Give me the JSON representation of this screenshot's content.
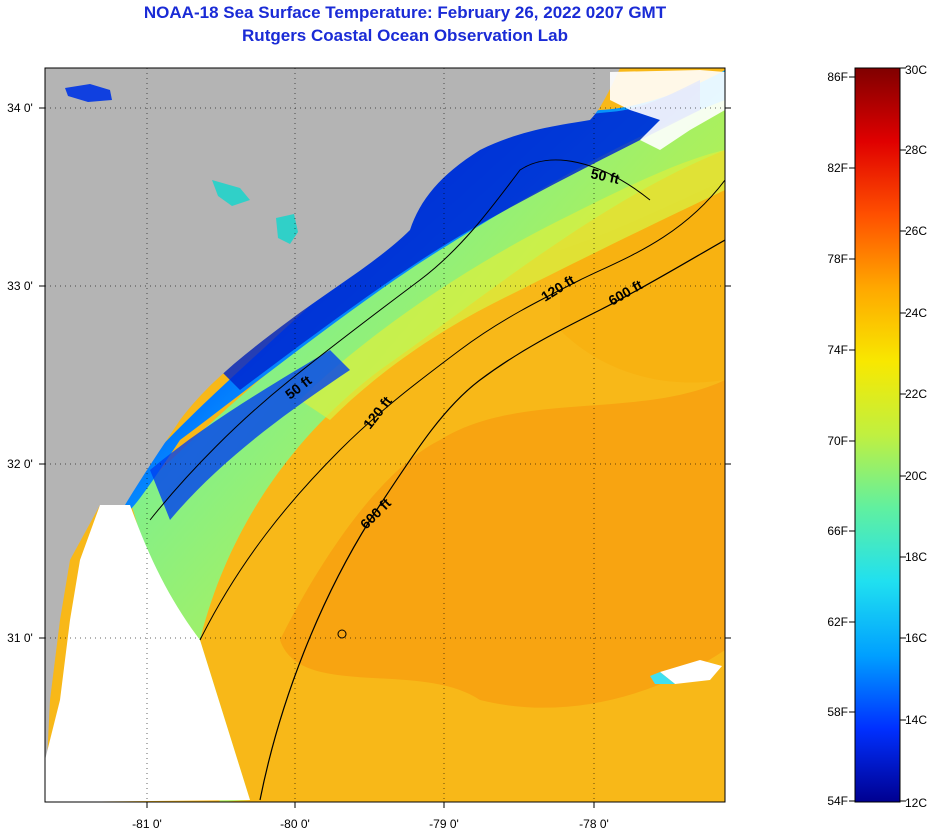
{
  "title": {
    "line1": "NOAA-18 Sea Surface Temperature:  February 26, 2022 0207 GMT",
    "line2": "Rutgers Coastal Ocean Observation Lab"
  },
  "map": {
    "lon_ticks": [
      "-81 0'",
      "-80 0'",
      "-79 0'",
      "-78 0'"
    ],
    "lat_ticks": [
      "34 0'",
      "33 0'",
      "32 0'",
      "31 0'"
    ],
    "contours": [
      {
        "label": "50 ft"
      },
      {
        "label": "120 ft"
      },
      {
        "label": "600 ft"
      }
    ],
    "contour_label_instances": [
      "50 ft",
      "50 ft",
      "120 ft",
      "120 ft",
      "600 ft",
      "600 ft"
    ]
  },
  "colorbar": {
    "fahrenheit_labels": [
      "86F",
      "82F",
      "78F",
      "74F",
      "70F",
      "66F",
      "62F",
      "58F",
      "54F"
    ],
    "celsius_labels": [
      "30C",
      "28C",
      "26C",
      "24C",
      "22C",
      "20C",
      "18C",
      "16C",
      "14C",
      "12C"
    ],
    "colors": [
      "#000090",
      "#0030ff",
      "#00a0ff",
      "#20e0f0",
      "#60f0a0",
      "#c0f040",
      "#f8e800",
      "#ffa800",
      "#ff5000",
      "#e00000",
      "#800000"
    ]
  }
}
